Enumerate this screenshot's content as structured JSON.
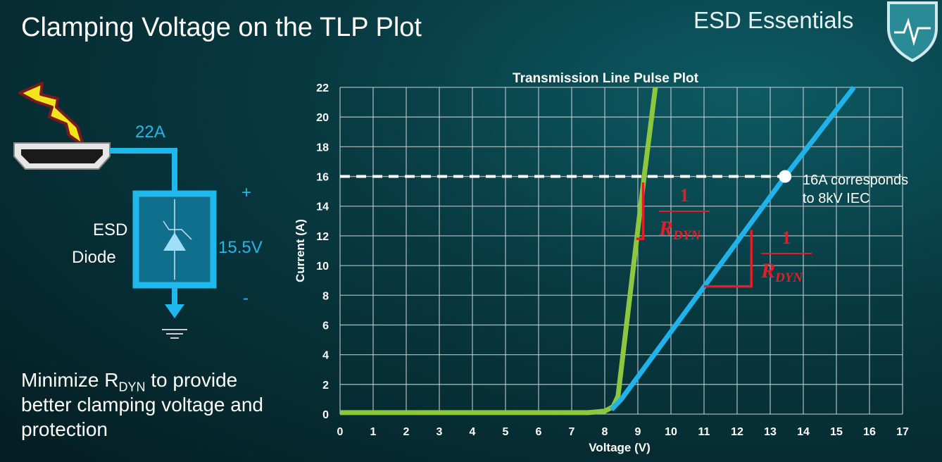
{
  "slide": {
    "title": "Clamping Voltage on the TLP Plot",
    "brand": "ESD Essentials",
    "bullet_pre": "Minimize R",
    "bullet_sub": "DYN",
    "bullet_post": " to provide better clamping voltage and protection"
  },
  "circuit": {
    "current_label": "22A",
    "voltage_label": "15.5V",
    "plus": "+",
    "minus": "-",
    "device_line1": "ESD",
    "device_line2": "Diode",
    "colors": {
      "wire": "#1fb8ec",
      "bolt": "#f2e51c"
    }
  },
  "chart_data": {
    "type": "line",
    "title": "Transmission Line Pulse Plot",
    "xlabel": "Voltage (V)",
    "ylabel": "Current (A)",
    "xlim": [
      0,
      17
    ],
    "ylim": [
      0,
      22
    ],
    "xticks": [
      "0",
      "1",
      "2",
      "3",
      "4",
      "5",
      "6",
      "7",
      "8",
      "9",
      "10",
      "11",
      "12",
      "13",
      "14",
      "15",
      "16",
      "17"
    ],
    "yticks": [
      "0",
      "2",
      "4",
      "6",
      "8",
      "10",
      "12",
      "14",
      "16",
      "18",
      "20",
      "22"
    ],
    "grid": true,
    "series": [
      {
        "color": "#8dc63f",
        "points": [
          [
            0,
            0.1
          ],
          [
            7.5,
            0.1
          ],
          [
            8.0,
            0.2
          ],
          [
            8.25,
            0.5
          ],
          [
            8.4,
            1.2
          ],
          [
            9.19,
            16
          ],
          [
            9.53,
            22
          ]
        ]
      },
      {
        "color": "#1fb3ea",
        "points": [
          [
            8.2,
            0.3
          ],
          [
            8.5,
            1
          ],
          [
            13.45,
            16
          ],
          [
            15.53,
            22
          ]
        ]
      }
    ],
    "reference_line": {
      "y": 16,
      "style": "dashed",
      "color": "#ffffff"
    },
    "marker": {
      "x": 13.45,
      "y": 16,
      "color": "#ffffff"
    },
    "annotation_line1": "16A corresponds",
    "annotation_line2": "to 8kV IEC",
    "slope_labels": [
      {
        "numerator": "1",
        "denominator": "R",
        "sub": "DYN",
        "color": "#e41e26",
        "tri": [
          [
            9.16,
            15.6
          ],
          [
            9.16,
            11.8
          ],
          [
            8.95,
            11.8
          ]
        ]
      },
      {
        "numerator": "1",
        "denominator": "R",
        "sub": "DYN",
        "color": "#e41e26",
        "tri": [
          [
            12.43,
            12.4
          ],
          [
            12.43,
            8.6
          ],
          [
            11.0,
            8.6
          ]
        ]
      }
    ]
  }
}
